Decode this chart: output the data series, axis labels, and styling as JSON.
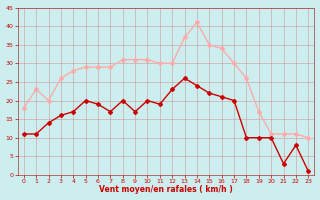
{
  "x": [
    0,
    1,
    2,
    3,
    4,
    5,
    6,
    7,
    8,
    9,
    10,
    11,
    12,
    13,
    14,
    15,
    16,
    17,
    18,
    19,
    20,
    21,
    22,
    23
  ],
  "wind_avg": [
    11,
    11,
    14,
    16,
    17,
    20,
    19,
    17,
    20,
    17,
    20,
    19,
    23,
    26,
    24,
    22,
    21,
    20,
    10,
    10,
    10,
    3,
    8,
    1
  ],
  "wind_gust": [
    18,
    23,
    20,
    26,
    28,
    29,
    29,
    29,
    31,
    31,
    31,
    30,
    30,
    37,
    41,
    35,
    34,
    30,
    26,
    17,
    11,
    11,
    11,
    10
  ],
  "xlabel": "Vent moyen/en rafales ( km/h )",
  "ylim": [
    0,
    45
  ],
  "xlim": [
    -0.5,
    23.5
  ],
  "yticks": [
    0,
    5,
    10,
    15,
    20,
    25,
    30,
    35,
    40,
    45
  ],
  "xticks": [
    0,
    1,
    2,
    3,
    4,
    5,
    6,
    7,
    8,
    9,
    10,
    11,
    12,
    13,
    14,
    15,
    16,
    17,
    18,
    19,
    20,
    21,
    22,
    23
  ],
  "color_avg": "#cc0000",
  "color_gust": "#ffaaaa",
  "bg_color": "#cceeee",
  "grid_color": "#cc9999",
  "axis_label_color": "#cc0000",
  "tick_color": "#cc0000",
  "spine_color": "#aa3333"
}
